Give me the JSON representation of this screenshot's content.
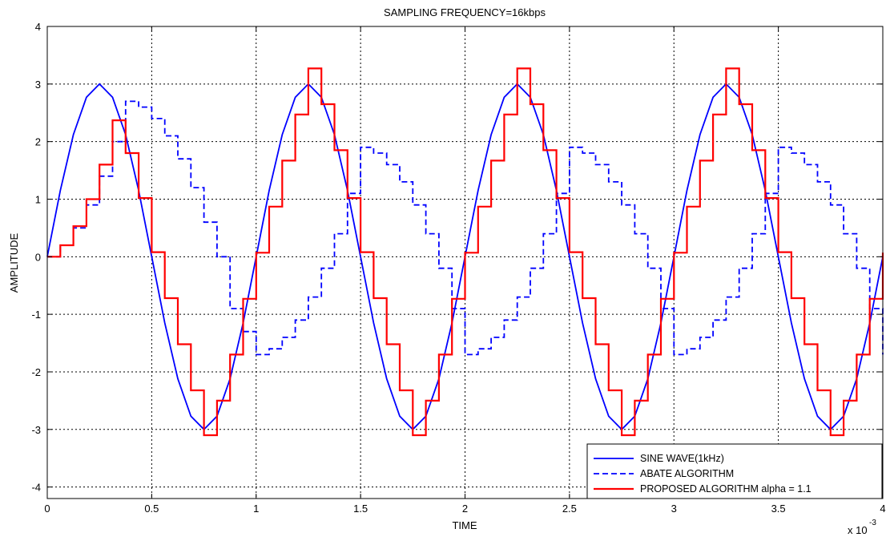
{
  "chart_data": {
    "type": "line",
    "title": "SAMPLING FREQUENCY=16kbps",
    "xlabel": "TIME",
    "ylabel": "AMPLITUDE",
    "x_exponent_label": "x 10",
    "x_exponent_power": "-3",
    "xlim": [
      0,
      4
    ],
    "ylim": [
      -4.2,
      4
    ],
    "x_ticks": [
      0,
      0.5,
      1,
      1.5,
      2,
      2.5,
      3,
      3.5,
      4
    ],
    "x_tick_labels": [
      "0",
      "0.5",
      "1",
      "1.5",
      "2",
      "2.5",
      "3",
      "3.5",
      "4"
    ],
    "y_ticks": [
      -4,
      -3,
      -2,
      -1,
      0,
      1,
      2,
      3,
      4
    ],
    "y_tick_labels": [
      "-4",
      "-3",
      "-2",
      "-1",
      "0",
      "1",
      "2",
      "3",
      "4"
    ],
    "grid": true,
    "legend_position": "bottom-right",
    "series": [
      {
        "name": "SINE WAVE(1kHz)",
        "style": "solid",
        "color": "#0000ff",
        "render": "line",
        "x": [
          0,
          0.0625,
          0.125,
          0.1875,
          0.25,
          0.3125,
          0.375,
          0.4375,
          0.5,
          0.5625,
          0.625,
          0.6875,
          0.75,
          0.8125,
          0.875,
          0.9375,
          1,
          1.0625,
          1.125,
          1.1875,
          1.25,
          1.3125,
          1.375,
          1.4375,
          1.5,
          1.5625,
          1.625,
          1.6875,
          1.75,
          1.8125,
          1.875,
          1.9375,
          2,
          2.0625,
          2.125,
          2.1875,
          2.25,
          2.3125,
          2.375,
          2.4375,
          2.5,
          2.5625,
          2.625,
          2.6875,
          2.75,
          2.8125,
          2.875,
          2.9375,
          3,
          3.0625,
          3.125,
          3.1875,
          3.25,
          3.3125,
          3.375,
          3.4375,
          3.5,
          3.5625,
          3.625,
          3.6875,
          3.75,
          3.8125,
          3.875,
          3.9375,
          4
        ],
        "y": [
          0,
          1.15,
          2.12,
          2.77,
          3,
          2.77,
          2.12,
          1.15,
          0,
          -1.15,
          -2.12,
          -2.77,
          -3,
          -2.77,
          -2.12,
          -1.15,
          0,
          1.15,
          2.12,
          2.77,
          3,
          2.77,
          2.12,
          1.15,
          0,
          -1.15,
          -2.12,
          -2.77,
          -3,
          -2.77,
          -2.12,
          -1.15,
          0,
          1.15,
          2.12,
          2.77,
          3,
          2.77,
          2.12,
          1.15,
          0,
          -1.15,
          -2.12,
          -2.77,
          -3,
          -2.77,
          -2.12,
          -1.15,
          0,
          1.15,
          2.12,
          2.77,
          3,
          2.77,
          2.12,
          1.15,
          0,
          -1.15,
          -2.12,
          -2.77,
          -3,
          -2.77,
          -2.12,
          -1.15,
          0
        ]
      },
      {
        "name": "ABATE ALGORITHM",
        "style": "dashed",
        "color": "#0000ff",
        "render": "step",
        "x": [
          0,
          0.0625,
          0.125,
          0.1875,
          0.25,
          0.3125,
          0.375,
          0.4375,
          0.5,
          0.5625,
          0.625,
          0.6875,
          0.75,
          0.8125,
          0.875,
          0.9375,
          1,
          1.0625,
          1.125,
          1.1875,
          1.25,
          1.3125,
          1.375,
          1.4375,
          1.5,
          1.5625,
          1.625,
          1.6875,
          1.75,
          1.8125,
          1.875,
          1.9375,
          2,
          2.0625,
          2.125,
          2.1875,
          2.25,
          2.3125,
          2.375,
          2.4375,
          2.5,
          2.5625,
          2.625,
          2.6875,
          2.75,
          2.8125,
          2.875,
          2.9375,
          3,
          3.0625,
          3.125,
          3.1875,
          3.25,
          3.3125,
          3.375,
          3.4375,
          3.5,
          3.5625,
          3.625,
          3.6875,
          3.75,
          3.8125,
          3.875,
          3.9375,
          4
        ],
        "y": [
          0,
          0.2,
          0.5,
          0.9,
          1.4,
          2.0,
          2.7,
          2.6,
          2.4,
          2.1,
          1.7,
          1.2,
          0.6,
          0,
          -0.9,
          -1.3,
          -1.7,
          -1.6,
          -1.4,
          -1.1,
          -0.7,
          -0.2,
          0.4,
          1.1,
          1.9,
          1.8,
          1.6,
          1.3,
          0.9,
          0.4,
          -0.2,
          -0.9,
          -1.7,
          -1.6,
          -1.4,
          -1.1,
          -0.7,
          -0.2,
          0.4,
          1.1,
          1.9,
          1.8,
          1.6,
          1.3,
          0.9,
          0.4,
          -0.2,
          -0.9,
          -1.7,
          -1.6,
          -1.4,
          -1.1,
          -0.7,
          -0.2,
          0.4,
          1.1,
          1.9,
          1.8,
          1.6,
          1.3,
          0.9,
          0.4,
          -0.2,
          -0.9,
          -1.7
        ]
      },
      {
        "name": "PROPOSED ALGORITHM alpha = 1.1",
        "style": "solid",
        "color": "#ff0000",
        "render": "step",
        "x": [
          0,
          0.0625,
          0.125,
          0.1875,
          0.25,
          0.3125,
          0.375,
          0.4375,
          0.5,
          0.5625,
          0.625,
          0.6875,
          0.75,
          0.8125,
          0.875,
          0.9375,
          1,
          1.0625,
          1.125,
          1.1875,
          1.25,
          1.3125,
          1.375,
          1.4375,
          1.5,
          1.5625,
          1.625,
          1.6875,
          1.75,
          1.8125,
          1.875,
          1.9375,
          2,
          2.0625,
          2.125,
          2.1875,
          2.25,
          2.3125,
          2.375,
          2.4375,
          2.5,
          2.5625,
          2.625,
          2.6875,
          2.75,
          2.8125,
          2.875,
          2.9375,
          3,
          3.0625,
          3.125,
          3.1875,
          3.25,
          3.3125,
          3.375,
          3.4375,
          3.5,
          3.5625,
          3.625,
          3.6875,
          3.75,
          3.8125,
          3.875,
          3.9375,
          4
        ],
        "y": [
          0,
          0.2,
          0.53,
          1.0,
          1.6,
          2.37,
          1.8,
          1.02,
          0.08,
          -0.72,
          -1.52,
          -2.32,
          -3.1,
          -2.5,
          -1.7,
          -0.73,
          0.07,
          0.87,
          1.67,
          2.47,
          3.27,
          2.65,
          1.85,
          1.02,
          0.08,
          -0.72,
          -1.52,
          -2.32,
          -3.1,
          -2.5,
          -1.7,
          -0.73,
          0.07,
          0.87,
          1.67,
          2.47,
          3.27,
          2.65,
          1.85,
          1.02,
          0.08,
          -0.72,
          -1.52,
          -2.32,
          -3.1,
          -2.5,
          -1.7,
          -0.73,
          0.07,
          0.87,
          1.67,
          2.47,
          3.27,
          2.65,
          1.85,
          1.02,
          0.08,
          -0.72,
          -1.52,
          -2.32,
          -3.1,
          -2.5,
          -1.7,
          -0.73,
          0.07
        ]
      }
    ]
  }
}
